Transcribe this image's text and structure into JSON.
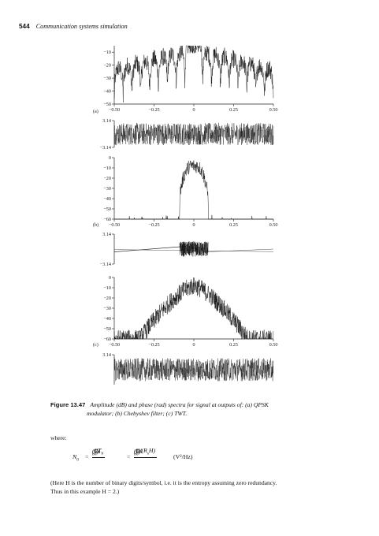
{
  "header": {
    "page_number": "544",
    "running_title": "Communication systems simulation"
  },
  "figure": {
    "panel_labels": [
      "(a)",
      "(b)",
      "(c)"
    ],
    "phase_ticks": [
      "3.14",
      "−3.14"
    ],
    "freq_ticks": [
      "−0.50",
      "−0.25",
      "0",
      "0.25",
      "0.50"
    ],
    "amp_ticks_a": [
      "−10",
      "−20",
      "−30",
      "−40",
      "−50"
    ],
    "amp_ticks_bc": [
      "0",
      "−10",
      "−20",
      "−30",
      "−40",
      "−50",
      "−60"
    ]
  },
  "chart_data": [
    {
      "type": "line",
      "panel": "(a)",
      "ylabel": "",
      "xlim": [
        -0.5,
        0.5
      ],
      "ylim": [
        -50,
        -5
      ],
      "description_ticks": "amplitude"
    },
    {
      "type": "line",
      "panel": "(a)",
      "ylim": [
        -3.14,
        3.14
      ]
    },
    {
      "type": "line",
      "panel": "(b)",
      "xlim": [
        -0.5,
        0.5
      ],
      "ylim": [
        -60,
        0
      ]
    },
    {
      "type": "line",
      "panel": "(b)",
      "ylim": [
        -3.14,
        3.14
      ]
    },
    {
      "type": "line",
      "panel": "(c)",
      "xlim": [
        -0.5,
        0.5
      ],
      "ylim": [
        -60,
        0
      ]
    },
    {
      "type": "line",
      "panel": "(c)",
      "ylim": [
        -3.14,
        3.14
      ]
    }
  ],
  "caption": {
    "label": "Figure 13.47",
    "text_line1": "Amplitude (dB) and phase (rad) spectra for signal at outputs of: (a) QPSK",
    "text_line2": "modulator; (b) Chebyshev filter; (c) TWT."
  },
  "body": {
    "where": "where:",
    "eq_lhs": "N",
    "eq_lhs_sub": "0",
    "eq_eq1": "=",
    "eq_f1_num": "CT",
    "eq_f1_num_sub": "b",
    "eq_f1_den": "(E",
    "eq_f1_den_sub": "b",
    "eq_f1_den_tail": "/N",
    "eq_f1_den_sub2": "0",
    "eq_f1_den_close": ")",
    "eq_eq2": "=",
    "eq_f2_num": "C/(R",
    "eq_f2_num_sub": "s",
    "eq_f2_num_tail": "H)",
    "eq_unit": "(V²/Hz)",
    "note_line1": "(Here H is the number of binary digits/symbol, i.e. it is the entropy assuming zero redundancy.",
    "note_line2": "Thus in this example H = 2.)"
  }
}
